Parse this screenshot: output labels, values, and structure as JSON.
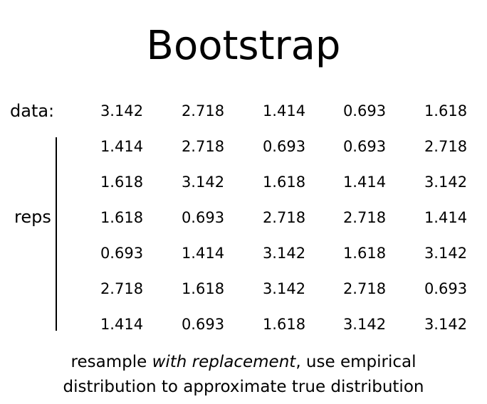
{
  "title": "Bootstrap",
  "data_label": "data:",
  "reps_label": "reps",
  "data_row": [
    "3.142",
    "2.718",
    "1.414",
    "0.693",
    "1.618"
  ],
  "reps": [
    [
      "1.414",
      "2.718",
      "0.693",
      "0.693",
      "2.718"
    ],
    [
      "1.618",
      "3.142",
      "1.618",
      "1.414",
      "3.142"
    ],
    [
      "1.618",
      "0.693",
      "2.718",
      "2.718",
      "1.414"
    ],
    [
      "0.693",
      "1.414",
      "3.142",
      "1.618",
      "3.142"
    ],
    [
      "2.718",
      "1.618",
      "3.142",
      "2.718",
      "0.693"
    ],
    [
      "1.414",
      "0.693",
      "1.618",
      "3.142",
      "3.142"
    ]
  ],
  "caption": {
    "line1_pre": "resample ",
    "line1_em": "with replacement",
    "line1_post": ", use empirical",
    "line2": "distribution to approximate true distribution"
  }
}
